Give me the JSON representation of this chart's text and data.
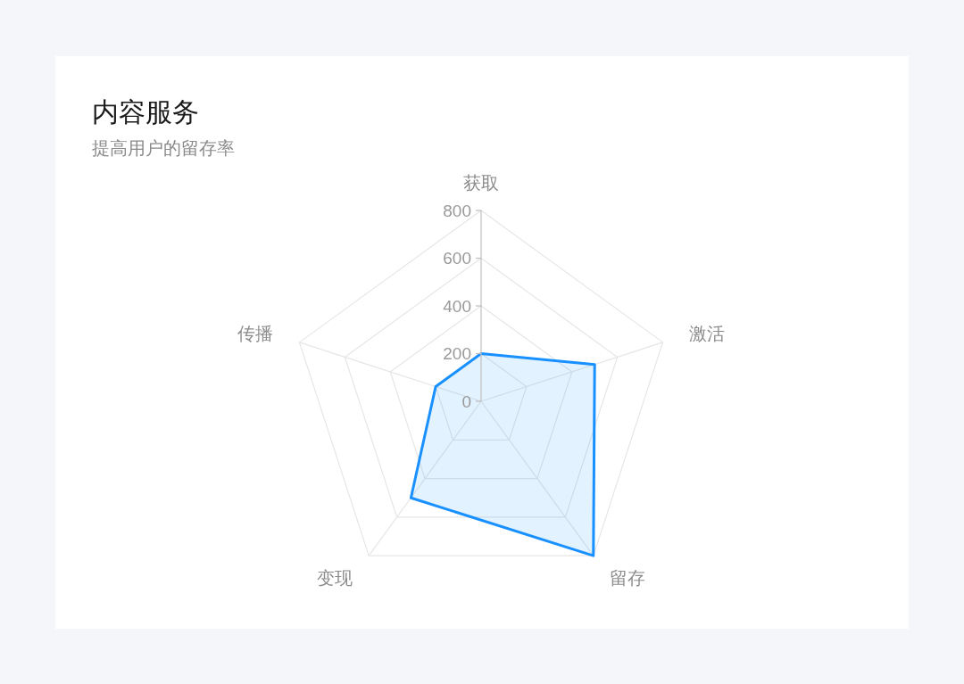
{
  "chart_data": {
    "type": "radar",
    "title": "内容服务",
    "subtitle": "提高用户的留存率",
    "categories": [
      "获取",
      "激活",
      "留存",
      "变现",
      "传播"
    ],
    "series": [
      {
        "color": "#1890ff",
        "values": [
          200,
          500,
          800,
          500,
          200
        ]
      }
    ],
    "ylim": [
      0,
      800
    ],
    "yticks": [
      0,
      200,
      400,
      600,
      800
    ],
    "grid": true
  }
}
